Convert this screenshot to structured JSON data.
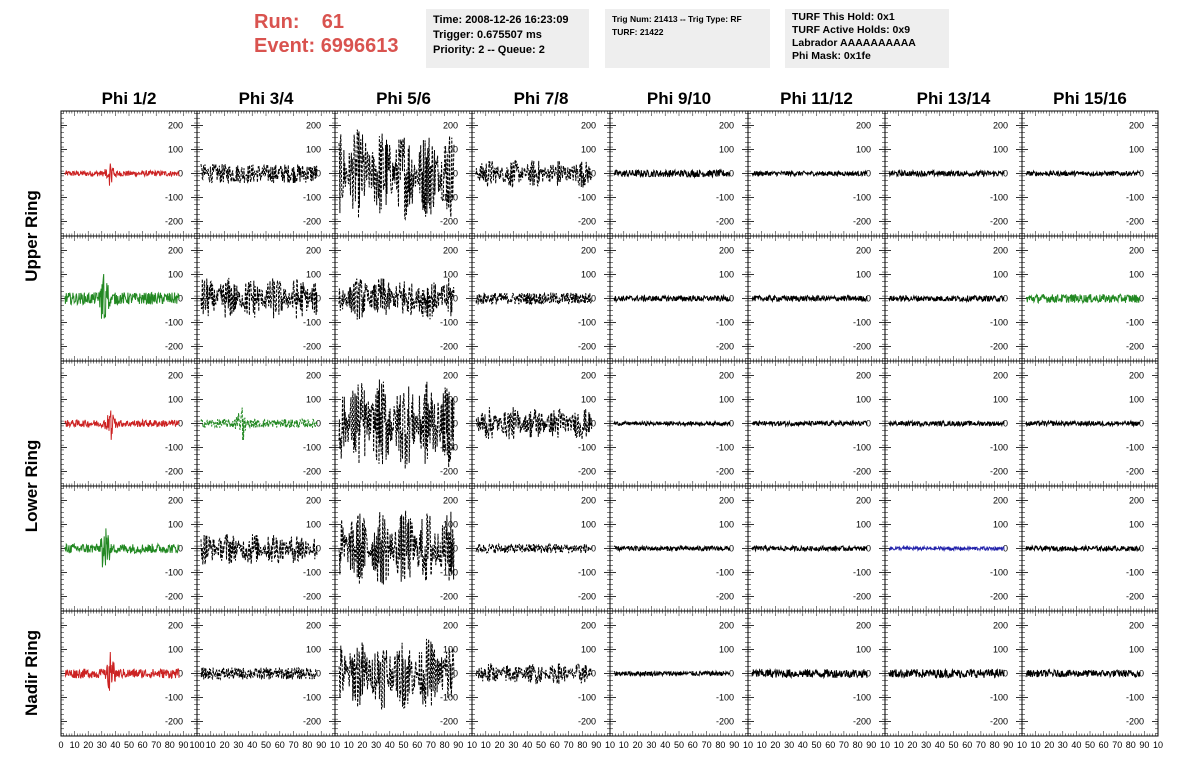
{
  "header": {
    "run_label": "Run:",
    "run_value": "61",
    "event_label": "Event:",
    "event_value": "6996613",
    "info1": [
      "Time: 2008-12-26 16:23:09",
      "Trigger: 0.675507 ms",
      "Priority: 2 -- Queue: 2"
    ],
    "info2": [
      "Trig Num: 21413 -- Trig Type: RF",
      "",
      "TURF: 21422"
    ],
    "info3": [
      "TURF This Hold: 0x1",
      "TURF Active Holds: 0x9",
      "Labrador AAAAAAAAAA",
      "Phi Mask: 0x1fe"
    ]
  },
  "colors": {
    "accent": "#d9534f",
    "red": "#cc2222",
    "green": "#228822",
    "blue": "#2222aa",
    "black": "#000000"
  },
  "chart_data": {
    "type": "line",
    "columns": [
      "Phi 1/2",
      "Phi 3/4",
      "Phi 5/6",
      "Phi 7/8",
      "Phi 9/10",
      "Phi 11/12",
      "Phi 13/14",
      "Phi 15/16"
    ],
    "rows": [
      "Upper Ring",
      "Upper Ring",
      "Lower Ring",
      "Lower Ring",
      "Nadir Ring"
    ],
    "row_labels": [
      "Upper Ring",
      "Lower Ring",
      "Nadir Ring"
    ],
    "xlim": [
      0,
      100
    ],
    "ylim": [
      -260,
      260
    ],
    "y_ticks": [
      "200",
      "100",
      "0",
      "-100",
      "-200"
    ],
    "x_tick_labels_first": "0 10 20 30 40 50 60 70 80 90 100",
    "x_tick_labels_panel": "10 20 30 40 50 60 70 80 90 10",
    "panels": [
      {
        "row": 0,
        "col": 0,
        "color": "red",
        "amp": 12,
        "burst": [
          40,
          60
        ]
      },
      {
        "row": 0,
        "col": 1,
        "color": "black",
        "amp": 40,
        "dashed": true
      },
      {
        "row": 0,
        "col": 2,
        "color": "black",
        "amp": 190,
        "dashed": true
      },
      {
        "row": 0,
        "col": 3,
        "color": "black",
        "amp": 60,
        "dashed": true
      },
      {
        "row": 0,
        "col": 4,
        "color": "black",
        "amp": 15
      },
      {
        "row": 0,
        "col": 5,
        "color": "black",
        "amp": 10
      },
      {
        "row": 0,
        "col": 6,
        "color": "black",
        "amp": 12
      },
      {
        "row": 0,
        "col": 7,
        "color": "black",
        "amp": 10
      },
      {
        "row": 1,
        "col": 0,
        "color": "green",
        "amp": 25,
        "burst": [
          35,
          140
        ]
      },
      {
        "row": 1,
        "col": 1,
        "color": "black",
        "amp": 90,
        "dashed": true
      },
      {
        "row": 1,
        "col": 2,
        "color": "black",
        "amp": 90,
        "dashed": true
      },
      {
        "row": 1,
        "col": 3,
        "color": "black",
        "amp": 25,
        "dashed": true
      },
      {
        "row": 1,
        "col": 4,
        "color": "black",
        "amp": 12
      },
      {
        "row": 1,
        "col": 5,
        "color": "black",
        "amp": 12
      },
      {
        "row": 1,
        "col": 6,
        "color": "black",
        "amp": 12
      },
      {
        "row": 1,
        "col": 7,
        "color": "green",
        "amp": 18
      },
      {
        "row": 2,
        "col": 0,
        "color": "red",
        "amp": 15,
        "burst": [
          40,
          70
        ]
      },
      {
        "row": 2,
        "col": 1,
        "color": "green",
        "amp": 18,
        "dashed": true,
        "burst": [
          35,
          90
        ]
      },
      {
        "row": 2,
        "col": 2,
        "color": "black",
        "amp": 190,
        "dashed": true
      },
      {
        "row": 2,
        "col": 3,
        "color": "black",
        "amp": 70,
        "dashed": true
      },
      {
        "row": 2,
        "col": 4,
        "color": "black",
        "amp": 8
      },
      {
        "row": 2,
        "col": 5,
        "color": "black",
        "amp": 10
      },
      {
        "row": 2,
        "col": 6,
        "color": "black",
        "amp": 10
      },
      {
        "row": 2,
        "col": 7,
        "color": "black",
        "amp": 10
      },
      {
        "row": 3,
        "col": 0,
        "color": "green",
        "amp": 20,
        "burst": [
          35,
          120
        ]
      },
      {
        "row": 3,
        "col": 1,
        "color": "black",
        "amp": 70,
        "dashed": true
      },
      {
        "row": 3,
        "col": 2,
        "color": "black",
        "amp": 160,
        "dashed": true
      },
      {
        "row": 3,
        "col": 3,
        "color": "black",
        "amp": 20,
        "dashed": true
      },
      {
        "row": 3,
        "col": 4,
        "color": "black",
        "amp": 10
      },
      {
        "row": 3,
        "col": 5,
        "color": "black",
        "amp": 10
      },
      {
        "row": 3,
        "col": 6,
        "color": "blue",
        "amp": 8
      },
      {
        "row": 3,
        "col": 7,
        "color": "black",
        "amp": 10
      },
      {
        "row": 4,
        "col": 0,
        "color": "red",
        "amp": 20,
        "burst": [
          40,
          80
        ]
      },
      {
        "row": 4,
        "col": 1,
        "color": "black",
        "amp": 25,
        "dashed": true
      },
      {
        "row": 4,
        "col": 2,
        "color": "black",
        "amp": 150,
        "dashed": true
      },
      {
        "row": 4,
        "col": 3,
        "color": "black",
        "amp": 45,
        "dashed": true
      },
      {
        "row": 4,
        "col": 4,
        "color": "black",
        "amp": 10
      },
      {
        "row": 4,
        "col": 5,
        "color": "black",
        "amp": 18
      },
      {
        "row": 4,
        "col": 6,
        "color": "black",
        "amp": 18
      },
      {
        "row": 4,
        "col": 7,
        "color": "black",
        "amp": 15
      }
    ]
  }
}
